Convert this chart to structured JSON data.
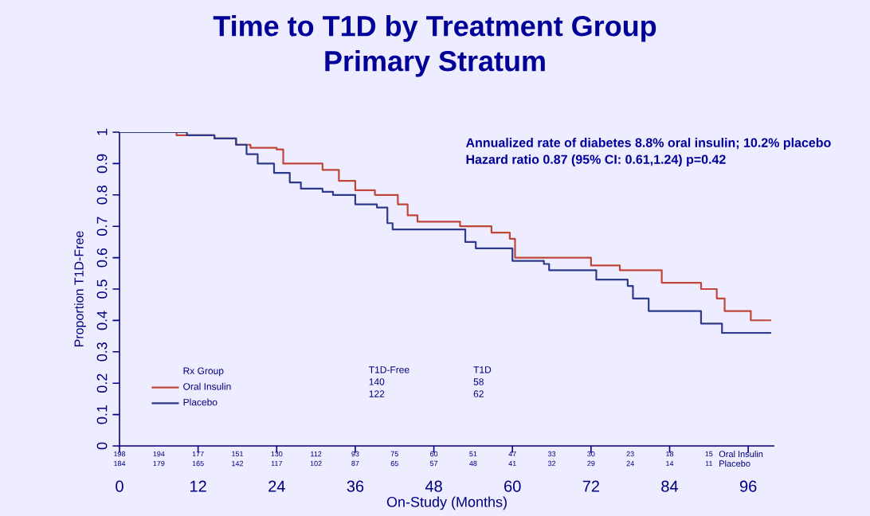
{
  "chart_data": {
    "type": "step",
    "title": "Time to T1D by Treatment Group",
    "subtitle": "Primary Stratum",
    "xlabel": "On-Study (Months)",
    "ylabel": "Proportion T1D-Free",
    "legend_title": "Rx Group",
    "legend": "bottom left",
    "marker": "none",
    "line_style": "solid",
    "xlim": [
      0,
      100
    ],
    "xticks": [
      0,
      12,
      24,
      36,
      48,
      60,
      72,
      84,
      96
    ],
    "ylim": [
      0,
      1
    ],
    "yticks": [
      0,
      0.1,
      0.2,
      0.3,
      0.4,
      0.5,
      0.6,
      0.7,
      0.8,
      0.9,
      1
    ],
    "series": [
      {
        "name": "Oral Insulin",
        "color": "#c0463a",
        "x": [
          0,
          8.7,
          14.5,
          17.8,
          20,
          24,
          25,
          31,
          33.5,
          36,
          39,
          42.5,
          44,
          45.5,
          52,
          56.8,
          59.6,
          60.4,
          72,
          76.4,
          82.8,
          88.8,
          91.2,
          92.4,
          96.4,
          99.5
        ],
        "values": [
          1,
          0.99,
          0.98,
          0.96,
          0.95,
          0.945,
          0.9,
          0.88,
          0.845,
          0.815,
          0.8,
          0.77,
          0.735,
          0.715,
          0.7,
          0.68,
          0.66,
          0.6,
          0.575,
          0.56,
          0.52,
          0.5,
          0.47,
          0.43,
          0.4,
          0.4
        ]
      },
      {
        "name": "Placebo",
        "color": "#2e3a8c",
        "x": [
          0,
          10.3,
          14.5,
          17.8,
          19.4,
          21.1,
          23.6,
          26,
          27.7,
          31,
          32.6,
          36,
          39.3,
          40.9,
          41.7,
          52.8,
          54.4,
          60,
          64.8,
          65.6,
          72.8,
          77.6,
          78.4,
          80.8,
          88.8,
          92,
          99.5
        ],
        "values": [
          1,
          0.99,
          0.98,
          0.96,
          0.93,
          0.9,
          0.87,
          0.84,
          0.82,
          0.81,
          0.8,
          0.77,
          0.76,
          0.71,
          0.69,
          0.65,
          0.63,
          0.59,
          0.58,
          0.56,
          0.53,
          0.51,
          0.47,
          0.43,
          0.39,
          0.36,
          0.36
        ]
      }
    ],
    "annotations": [
      "Annualized rate of diabetes 8.8% oral insulin; 10.2% placebo",
      "Hazard ratio 0.87 (95% CI: 0.61,1.24) p=0.42",
      "T1D-Free",
      "T1D",
      "140",
      "58",
      "122",
      "62",
      "198",
      "194",
      "177",
      "151",
      "130",
      "112",
      "93",
      "75",
      "60",
      "51",
      "47",
      "33",
      "30",
      "23",
      "18",
      "15",
      "184",
      "179",
      "165",
      "142",
      "117",
      "102",
      "87",
      "65",
      "57",
      "48",
      "41",
      "32",
      "29",
      "24",
      "14",
      "11",
      "Oral Insulin",
      "Placebo"
    ]
  }
}
